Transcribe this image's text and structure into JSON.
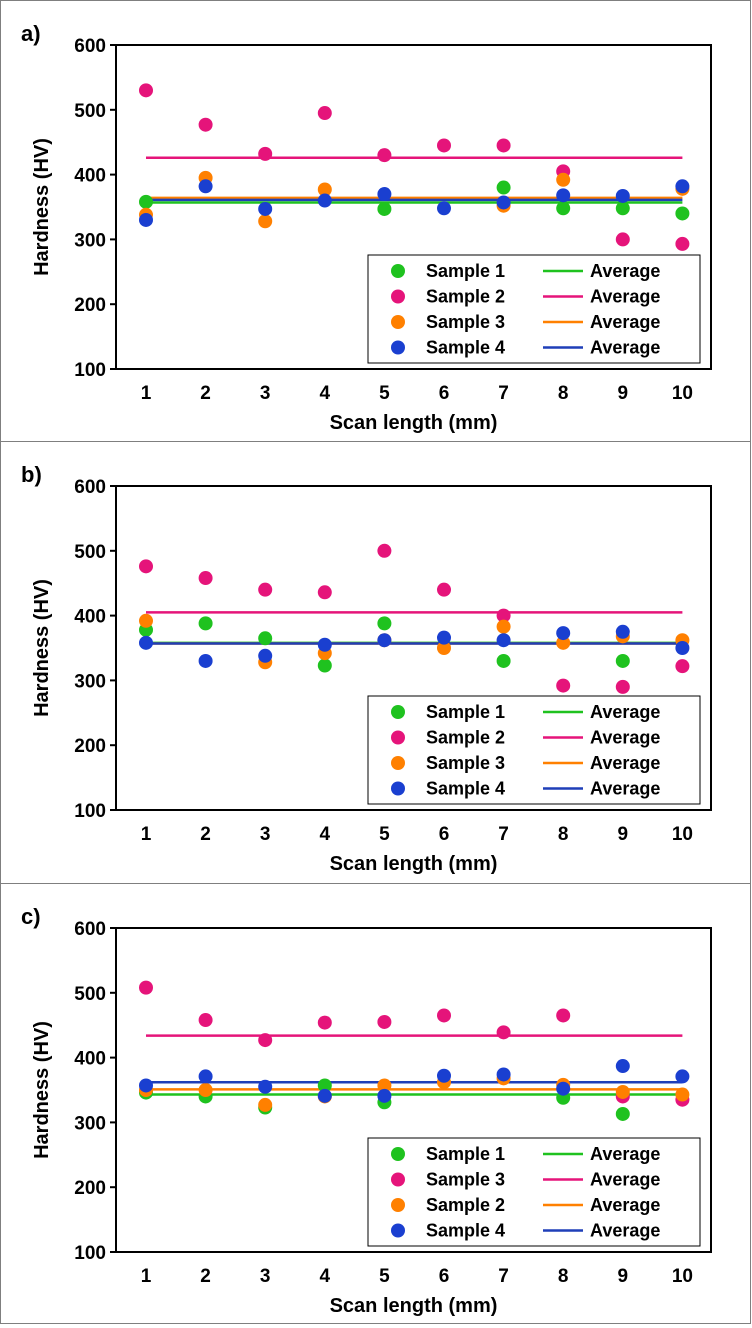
{
  "colors": {
    "sample_green": "#1fc21f",
    "sample_pink": "#e5147a",
    "sample_orange": "#ff8000",
    "sample_blue": "#1a3fd0",
    "avg_green": "#1fc21f",
    "avg_pink": "#e5147a",
    "avg_orange": "#ff8000",
    "avg_blue": "#1f3fb8"
  },
  "chart_data": [
    {
      "panel_label": "a)",
      "type": "scatter",
      "xlabel": "Scan length (mm)",
      "ylabel": "Hardness (HV)",
      "x": [
        1,
        2,
        3,
        4,
        5,
        6,
        7,
        8,
        9,
        10
      ],
      "x_ticks": [
        "1",
        "2",
        "3",
        "4",
        "5",
        "6",
        "7",
        "8",
        "9",
        "10"
      ],
      "ylim": [
        100,
        600
      ],
      "y_ticks": [
        "100",
        "200",
        "300",
        "400",
        "500",
        "600"
      ],
      "legend_position": "bottom-right",
      "legend_avg_label": "Average",
      "series": [
        {
          "name": "Sample 1",
          "color": "#1fc21f",
          "values": [
            358,
            null,
            null,
            null,
            347,
            null,
            380,
            348,
            348,
            340
          ],
          "average": 357
        },
        {
          "name": "Sample 2",
          "color": "#e5147a",
          "values": [
            530,
            477,
            432,
            495,
            430,
            445,
            445,
            405,
            300,
            293
          ],
          "average": 426
        },
        {
          "name": "Sample 3",
          "color": "#ff8000",
          "values": [
            338,
            395,
            328,
            377,
            null,
            null,
            352,
            392,
            null,
            378
          ],
          "average": 364
        },
        {
          "name": "Sample 4",
          "color": "#1a3fd0",
          "values": [
            330,
            382,
            347,
            360,
            370,
            348,
            357,
            368,
            367,
            382
          ],
          "average": 361
        }
      ]
    },
    {
      "panel_label": "b)",
      "type": "scatter",
      "xlabel": "Scan length (mm)",
      "ylabel": "Hardness (HV)",
      "x": [
        1,
        2,
        3,
        4,
        5,
        6,
        7,
        8,
        9,
        10
      ],
      "x_ticks": [
        "1",
        "2",
        "3",
        "4",
        "5",
        "6",
        "7",
        "8",
        "9",
        "10"
      ],
      "ylim": [
        100,
        600
      ],
      "y_ticks": [
        "100",
        "200",
        "300",
        "400",
        "500",
        "600"
      ],
      "legend_position": "bottom-right",
      "legend_avg_label": "Average",
      "series": [
        {
          "name": "Sample 1",
          "color": "#1fc21f",
          "values": [
            378,
            388,
            365,
            323,
            388,
            null,
            330,
            null,
            330,
            null
          ],
          "average": 358
        },
        {
          "name": "Sample 2",
          "color": "#e5147a",
          "values": [
            476,
            458,
            440,
            436,
            500,
            440,
            400,
            292,
            290,
            322
          ],
          "average": 405
        },
        {
          "name": "Sample 3",
          "color": "#ff8000",
          "values": [
            392,
            null,
            328,
            342,
            362,
            350,
            383,
            358,
            368,
            362
          ],
          "average": 357
        },
        {
          "name": "Sample 4",
          "color": "#1a3fd0",
          "values": [
            358,
            330,
            338,
            355,
            362,
            366,
            362,
            373,
            375,
            350
          ],
          "average": 357
        }
      ]
    },
    {
      "panel_label": "c)",
      "type": "scatter",
      "xlabel": "Scan length (mm)",
      "ylabel": "Hardness (HV)",
      "x": [
        1,
        2,
        3,
        4,
        5,
        6,
        7,
        8,
        9,
        10
      ],
      "x_ticks": [
        "1",
        "2",
        "3",
        "4",
        "5",
        "6",
        "7",
        "8",
        "9",
        "10"
      ],
      "ylim": [
        100,
        600
      ],
      "y_ticks": [
        "100",
        "200",
        "300",
        "400",
        "500",
        "600"
      ],
      "legend_position": "bottom-right",
      "legend_avg_label": "Average",
      "series": [
        {
          "name": "Sample 1",
          "color": "#1fc21f",
          "values": [
            346,
            340,
            323,
            357,
            331,
            null,
            null,
            338,
            313,
            null
          ],
          "average": 343
        },
        {
          "name": "Sample 3",
          "color": "#e5147a",
          "values": [
            508,
            458,
            427,
            454,
            455,
            465,
            439,
            465,
            340,
            335
          ],
          "average": 434
        },
        {
          "name": "Sample 2",
          "color": "#ff8000",
          "values": [
            350,
            350,
            327,
            340,
            357,
            362,
            368,
            358,
            347,
            343
          ],
          "average": 351
        },
        {
          "name": "Sample 4",
          "color": "#1a3fd0",
          "values": [
            357,
            371,
            355,
            341,
            341,
            372,
            374,
            352,
            387,
            371
          ],
          "average": 362
        }
      ]
    }
  ]
}
